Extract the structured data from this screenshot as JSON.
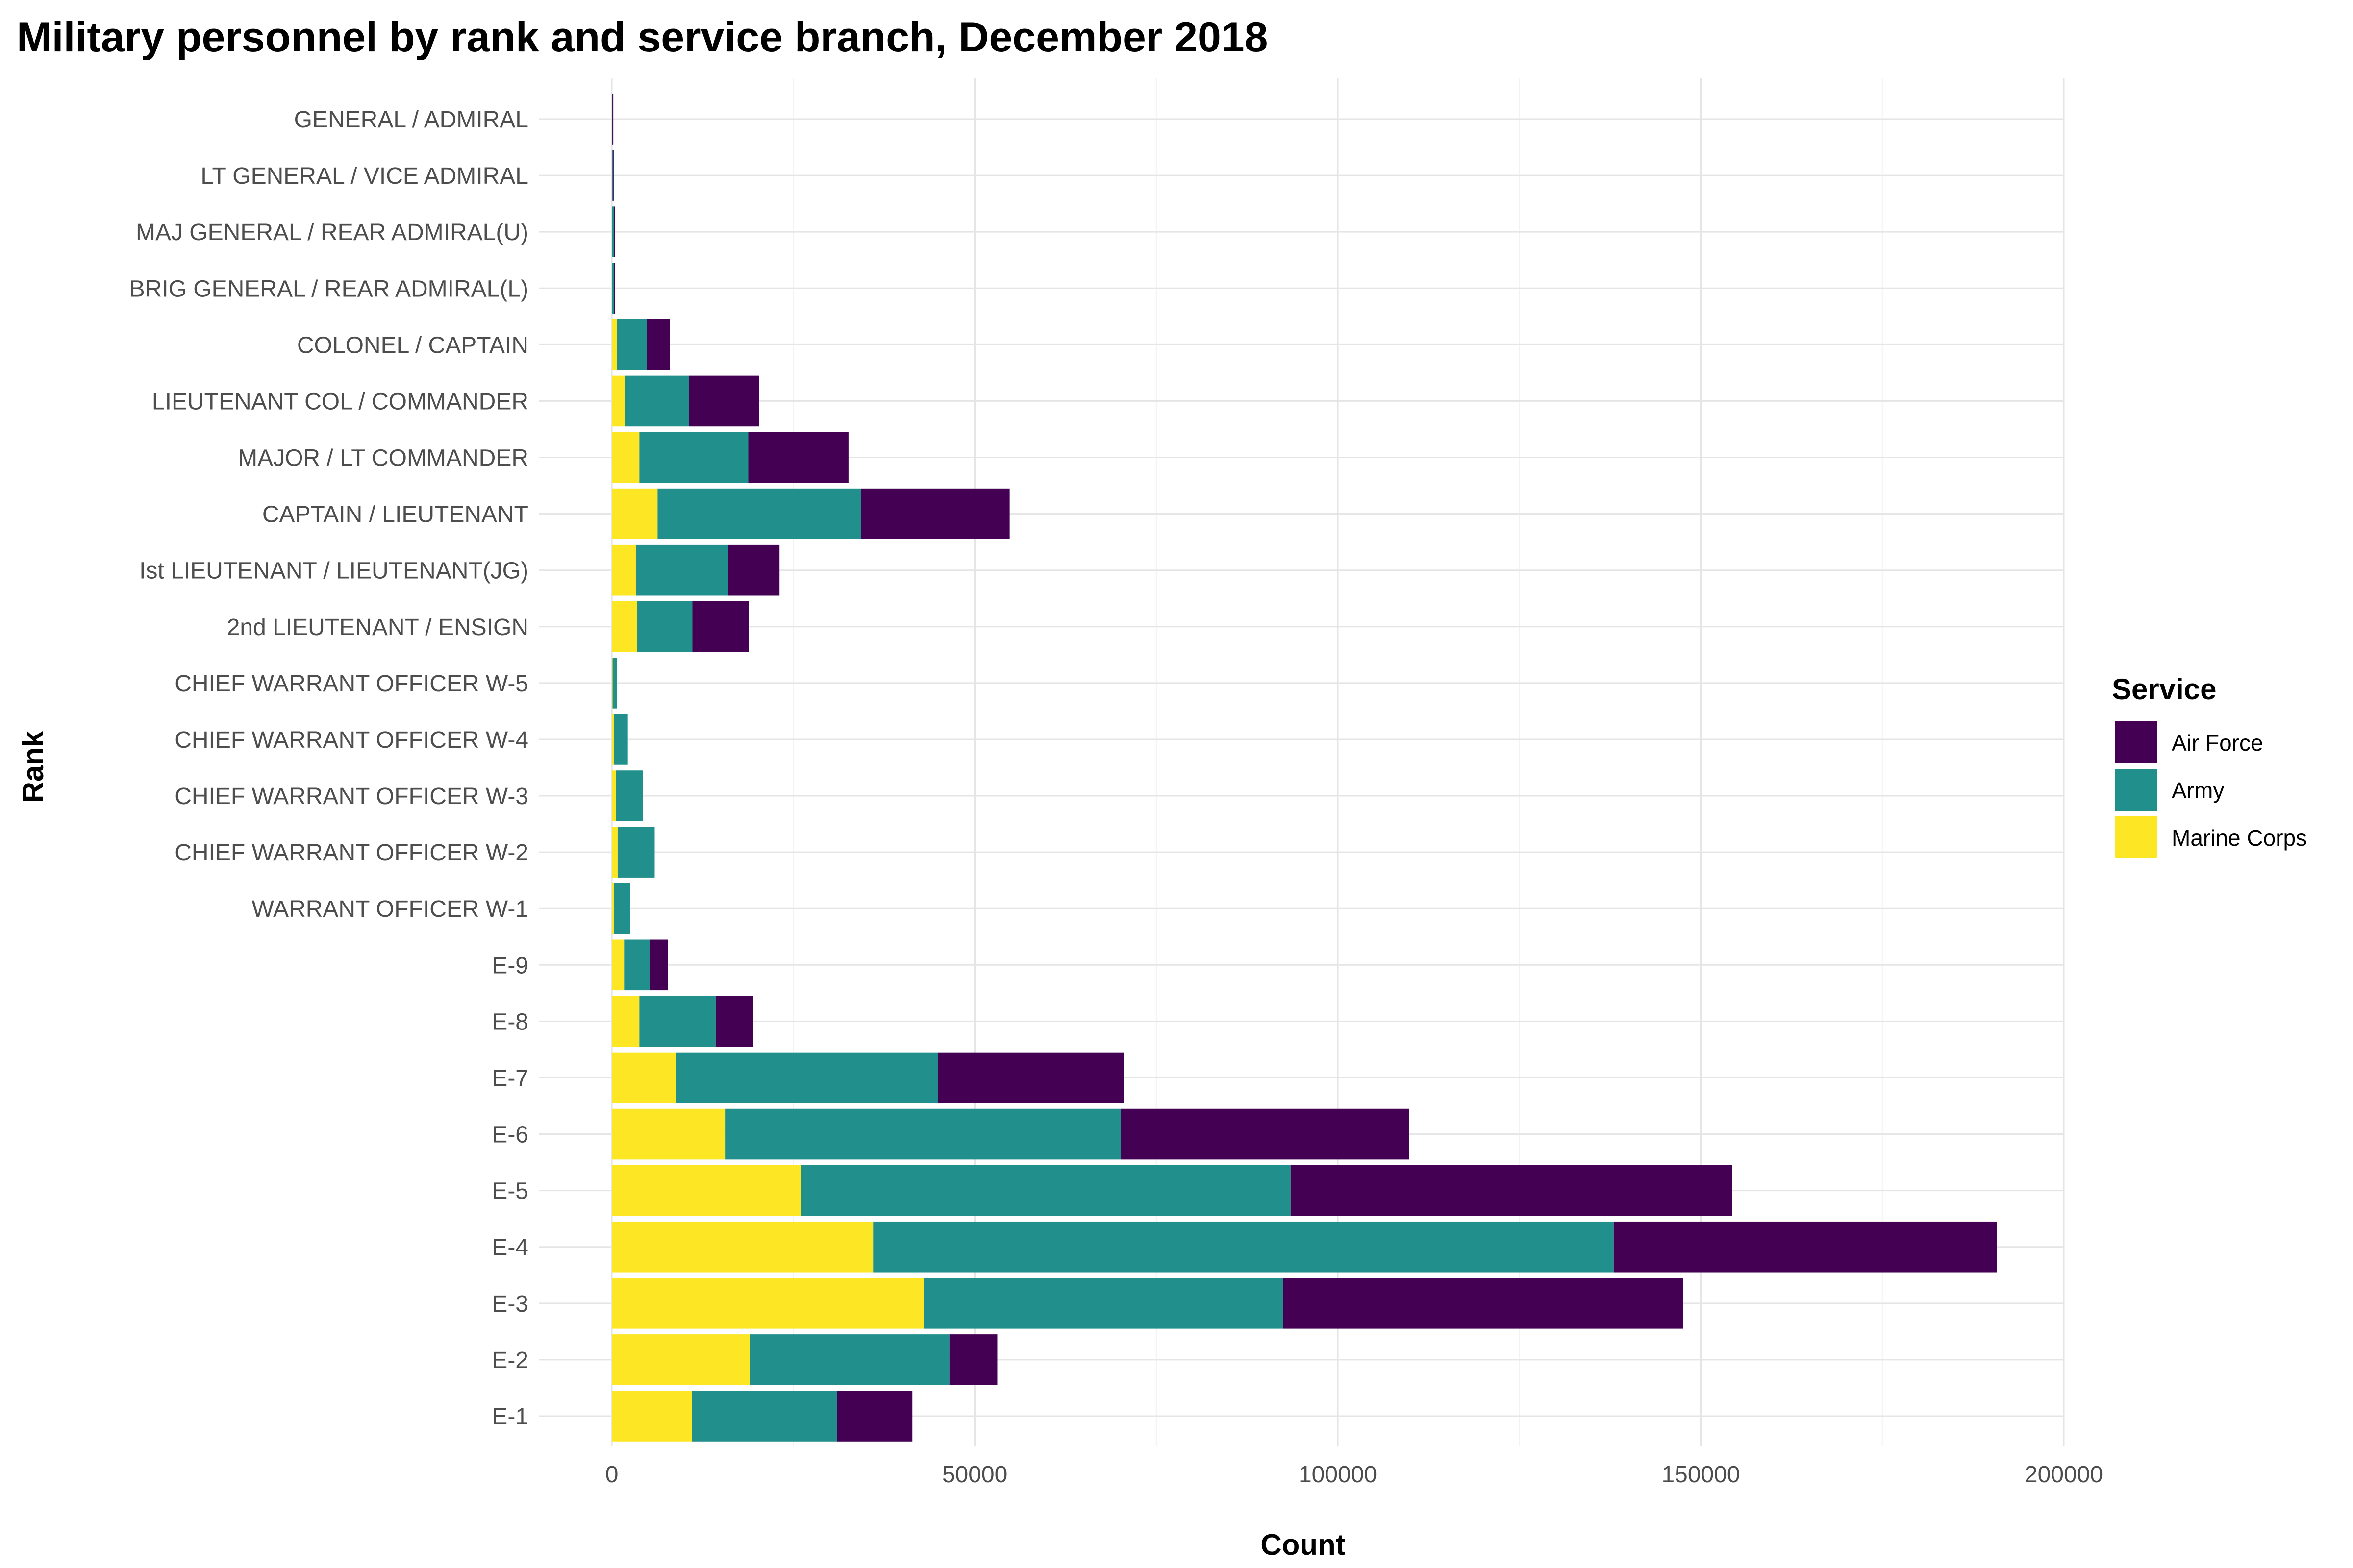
{
  "chart_data": {
    "type": "bar",
    "orientation": "horizontal",
    "stacked": true,
    "title": "Military personnel by rank and service branch, December 2018",
    "xlabel": "Count",
    "ylabel": "Rank",
    "xlim": [
      -10000,
      200000
    ],
    "x_ticks": [
      0,
      50000,
      100000,
      150000,
      200000
    ],
    "x_tick_labels": [
      "0",
      "50000",
      "100000",
      "150000",
      "200000"
    ],
    "grid": true,
    "legend_title": "Service",
    "legend_placement": "right",
    "categories": [
      "GENERAL / ADMIRAL",
      "LT GENERAL / VICE ADMIRAL",
      "MAJ GENERAL / REAR ADMIRAL(U)",
      "BRIG GENERAL / REAR ADMIRAL(L)",
      "COLONEL / CAPTAIN",
      "LIEUTENANT COL / COMMANDER",
      "MAJOR / LT COMMANDER",
      "CAPTAIN / LIEUTENANT",
      "Ist LIEUTENANT / LIEUTENANT(JG)",
      "2nd LIEUTENANT / ENSIGN",
      "CHIEF WARRANT OFFICER W-5",
      "CHIEF WARRANT OFFICER W-4",
      "CHIEF WARRANT OFFICER W-3",
      "CHIEF WARRANT OFFICER W-2",
      "WARRANT OFFICER W-1",
      "E-9",
      "E-8",
      "E-7",
      "E-6",
      "E-5",
      "E-4",
      "E-3",
      "E-2",
      "E-1"
    ],
    "series": [
      {
        "name": "Marine Corps",
        "color": "#FDE725",
        "values": [
          20,
          20,
          30,
          30,
          700,
          1800,
          3800,
          6300,
          3300,
          3500,
          100,
          300,
          600,
          800,
          300,
          1700,
          3800,
          8900,
          15600,
          26000,
          36000,
          43000,
          19000,
          11000
        ]
      },
      {
        "name": "Army",
        "color": "#21908C",
        "values": [
          50,
          100,
          300,
          300,
          4100,
          8800,
          15000,
          28000,
          12700,
          7600,
          600,
          1900,
          3700,
          5100,
          2200,
          3500,
          10500,
          36000,
          54500,
          67500,
          102000,
          49500,
          27500,
          20000
        ]
      },
      {
        "name": "Air Force",
        "color": "#440154",
        "values": [
          30,
          60,
          50,
          100,
          3200,
          9700,
          13800,
          20500,
          7100,
          7800,
          0,
          0,
          0,
          0,
          0,
          2500,
          5200,
          25600,
          39700,
          60800,
          52800,
          55100,
          6600,
          10400
        ]
      }
    ]
  }
}
